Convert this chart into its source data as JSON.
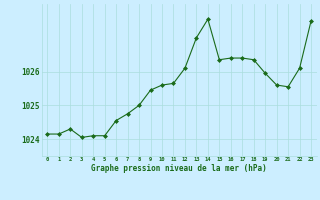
{
  "x": [
    0,
    1,
    2,
    3,
    4,
    5,
    6,
    7,
    8,
    9,
    10,
    11,
    12,
    13,
    14,
    15,
    16,
    17,
    18,
    19,
    20,
    21,
    22,
    23
  ],
  "y": [
    1024.15,
    1024.15,
    1024.3,
    1024.05,
    1024.1,
    1024.1,
    1024.55,
    1024.75,
    1025.0,
    1025.45,
    1025.6,
    1025.65,
    1026.1,
    1027.0,
    1027.55,
    1026.35,
    1026.4,
    1026.4,
    1026.35,
    1025.95,
    1025.6,
    1025.55,
    1026.1,
    1027.5
  ],
  "line_color": "#1a6b1a",
  "marker_color": "#1a6b1a",
  "bg_color": "#cceeff",
  "grid_color": "#aadddd",
  "xlabel": "Graphe pression niveau de la mer (hPa)",
  "xlabel_color": "#1a6b1a",
  "tick_color": "#1a6b1a",
  "ylim": [
    1023.5,
    1028.0
  ],
  "yticks": [
    1024,
    1025,
    1026
  ],
  "xticks": [
    0,
    1,
    2,
    3,
    4,
    5,
    6,
    7,
    8,
    9,
    10,
    11,
    12,
    13,
    14,
    15,
    16,
    17,
    18,
    19,
    20,
    21,
    22,
    23
  ],
  "figsize": [
    3.2,
    2.0
  ],
  "dpi": 100
}
